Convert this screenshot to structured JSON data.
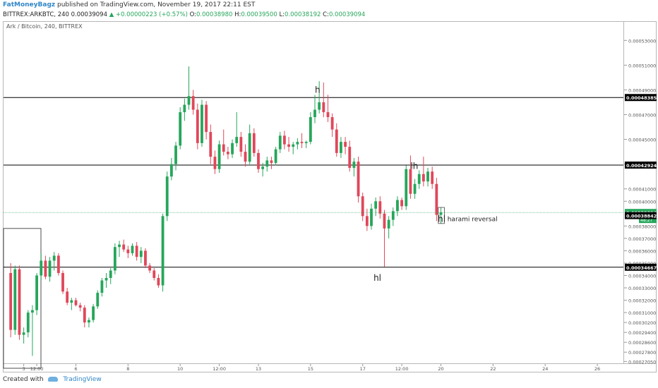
{
  "header": {
    "author": "FatMoneyBagz",
    "published_text": "published on TradingView.com, November 19, 2017 22:11 EST",
    "symbol_line": "BITTREX:ARKBTC, 240",
    "last_price": "0.00039094",
    "change_text": "▲ +0.00000223 (+0.57%)",
    "o_label": "O:",
    "o_value": "0.00038980",
    "h_label": "H:",
    "h_value": "0.00039500",
    "l_label": "L:",
    "l_value": "0.00038192",
    "c_label": "C:",
    "c_value": "0.00039094"
  },
  "symbol_title": "Ark / Bitcoin, 240, BITTREX",
  "footer": {
    "created_with": "Created with",
    "brand": "TradingView"
  },
  "chart_data": {
    "type": "candlestick",
    "title": "Ark / Bitcoin, 240, BITTREX",
    "ylim": [
      0.000269,
      0.000545
    ],
    "y_tick_labels": [
      "0.00053000",
      "0.00051000",
      "0.00049000",
      "0.00047000",
      "0.00045000",
      "0.00043000",
      "0.00041000",
      "0.00040000",
      "0.00038000",
      "0.00037000",
      "0.00036000",
      "0.00035000",
      "0.00034000",
      "0.00033000",
      "0.00032000",
      "0.00031000",
      "0.00030200",
      "0.00029400",
      "0.00028600",
      "0.00027800",
      "0.00027050"
    ],
    "y_tick_values": [
      0.00053,
      0.00051,
      0.00049,
      0.00047,
      0.00045,
      0.00043,
      0.00041,
      0.0004,
      0.00038,
      0.00037,
      0.00036,
      0.00035,
      0.00034,
      0.00033,
      0.00032,
      0.00031,
      0.000302,
      0.000294,
      0.000286,
      0.000278,
      0.0002705
    ],
    "x_ticks": [
      {
        "label": "3",
        "pos": 4
      },
      {
        "label": "12:00",
        "pos": 7
      },
      {
        "label": "6",
        "pos": 16
      },
      {
        "label": "8",
        "pos": 28
      },
      {
        "label": "10",
        "pos": 40
      },
      {
        "label": "12:00",
        "pos": 49
      },
      {
        "label": "13",
        "pos": 58
      },
      {
        "label": "15",
        "pos": 70
      },
      {
        "label": "17",
        "pos": 82
      },
      {
        "label": "12:00",
        "pos": 91
      },
      {
        "label": "20",
        "pos": 100
      },
      {
        "label": "22",
        "pos": 112
      },
      {
        "label": "24",
        "pos": 124
      },
      {
        "label": "26",
        "pos": 136
      }
    ],
    "x_range": [
      0,
      142
    ],
    "horizontal_levels": [
      {
        "value": 0.00048385,
        "label": "0.00048385"
      },
      {
        "value": 0.00042924,
        "label": "0.00042924"
      },
      {
        "value": 0.00034667,
        "label": "0.00034667"
      }
    ],
    "price_markers": [
      {
        "value": 0.00039094,
        "label": "0.00039094",
        "color": "#26a65b"
      },
      {
        "value": 0.00038842,
        "label": "0.00038842",
        "color": "#000000"
      }
    ],
    "countdown": "48:27",
    "annotations": [
      {
        "text": "h",
        "x": 71,
        "y": 0.0004878
      },
      {
        "text": "lh",
        "x": 93,
        "y": 0.000426
      },
      {
        "text": "hl",
        "x": 84.5,
        "y": 0.0003358
      },
      {
        "text": "hl",
        "x": 99.3,
        "y": 0.0003833
      },
      {
        "text": "harami reversal",
        "x": 101.5,
        "y": 0.000384
      }
    ],
    "colors": {
      "up": "#26a65b",
      "down": "#e0475a",
      "level": "#000000"
    },
    "candles": [
      {
        "o": 0.000342,
        "h": 0.00035,
        "l": 0.00029,
        "c": 0.000296
      },
      {
        "o": 0.000296,
        "h": 0.000348,
        "l": 0.000292,
        "c": 0.000345
      },
      {
        "o": 0.000345,
        "h": 0.000348,
        "l": 0.000288,
        "c": 0.000292
      },
      {
        "o": 0.000292,
        "h": 0.000298,
        "l": 0.000285,
        "c": 0.000294
      },
      {
        "o": 0.000294,
        "h": 0.000312,
        "l": 0.00029,
        "c": 0.00031
      },
      {
        "o": 0.00031,
        "h": 0.000316,
        "l": 0.000275,
        "c": 0.000312
      },
      {
        "o": 0.000312,
        "h": 0.000342,
        "l": 0.000308,
        "c": 0.00034
      },
      {
        "o": 0.00034,
        "h": 0.000358,
        "l": 0.000336,
        "c": 0.000352
      },
      {
        "o": 0.000352,
        "h": 0.000356,
        "l": 0.000337,
        "c": 0.000339
      },
      {
        "o": 0.000339,
        "h": 0.000355,
        "l": 0.000335,
        "c": 0.000352
      },
      {
        "o": 0.000352,
        "h": 0.000359,
        "l": 0.000344,
        "c": 0.000356
      },
      {
        "o": 0.000356,
        "h": 0.000358,
        "l": 0.00034,
        "c": 0.000342
      },
      {
        "o": 0.000342,
        "h": 0.000344,
        "l": 0.000325,
        "c": 0.000327
      },
      {
        "o": 0.000327,
        "h": 0.00033,
        "l": 0.000316,
        "c": 0.000318
      },
      {
        "o": 0.000318,
        "h": 0.000322,
        "l": 0.000312,
        "c": 0.00032
      },
      {
        "o": 0.00032,
        "h": 0.000322,
        "l": 0.000315,
        "c": 0.000316
      },
      {
        "o": 0.000316,
        "h": 0.000318,
        "l": 0.000311,
        "c": 0.000314
      },
      {
        "o": 0.000314,
        "h": 0.000316,
        "l": 0.000298,
        "c": 0.000302
      },
      {
        "o": 0.000302,
        "h": 0.000306,
        "l": 0.000298,
        "c": 0.000304
      },
      {
        "o": 0.000304,
        "h": 0.000317,
        "l": 0.000302,
        "c": 0.000315
      },
      {
        "o": 0.000315,
        "h": 0.000328,
        "l": 0.000313,
        "c": 0.000326
      },
      {
        "o": 0.000326,
        "h": 0.000338,
        "l": 0.000323,
        "c": 0.000336
      },
      {
        "o": 0.000336,
        "h": 0.000342,
        "l": 0.00033,
        "c": 0.000338
      },
      {
        "o": 0.000338,
        "h": 0.000346,
        "l": 0.000333,
        "c": 0.000344
      },
      {
        "o": 0.000344,
        "h": 0.000366,
        "l": 0.000341,
        "c": 0.000363
      },
      {
        "o": 0.000363,
        "h": 0.000368,
        "l": 0.000355,
        "c": 0.000365
      },
      {
        "o": 0.000365,
        "h": 0.000369,
        "l": 0.000359,
        "c": 0.000361
      },
      {
        "o": 0.000361,
        "h": 0.000364,
        "l": 0.000354,
        "c": 0.000358
      },
      {
        "o": 0.000358,
        "h": 0.000366,
        "l": 0.000356,
        "c": 0.000364
      },
      {
        "o": 0.000364,
        "h": 0.000367,
        "l": 0.000352,
        "c": 0.000355
      },
      {
        "o": 0.000355,
        "h": 0.000363,
        "l": 0.00035,
        "c": 0.00036
      },
      {
        "o": 0.00036,
        "h": 0.000362,
        "l": 0.000346,
        "c": 0.000348
      },
      {
        "o": 0.000348,
        "h": 0.00035,
        "l": 0.000342,
        "c": 0.000344
      },
      {
        "o": 0.000344,
        "h": 0.000346,
        "l": 0.000336,
        "c": 0.000338
      },
      {
        "o": 0.000338,
        "h": 0.000341,
        "l": 0.00033,
        "c": 0.000332
      },
      {
        "o": 0.000332,
        "h": 0.00039,
        "l": 0.000327,
        "c": 0.000388
      },
      {
        "o": 0.000388,
        "h": 0.000424,
        "l": 0.000384,
        "c": 0.00042
      },
      {
        "o": 0.00042,
        "h": 0.000435,
        "l": 0.000417,
        "c": 0.00043
      },
      {
        "o": 0.00043,
        "h": 0.000448,
        "l": 0.000425,
        "c": 0.000445
      },
      {
        "o": 0.000445,
        "h": 0.000476,
        "l": 0.000442,
        "c": 0.000472
      },
      {
        "o": 0.000472,
        "h": 0.000483,
        "l": 0.000465,
        "c": 0.000478
      },
      {
        "o": 0.000478,
        "h": 0.000509,
        "l": 0.000474,
        "c": 0.000485
      },
      {
        "o": 0.000485,
        "h": 0.00049,
        "l": 0.00047,
        "c": 0.000474
      },
      {
        "o": 0.000474,
        "h": 0.000479,
        "l": 0.000442,
        "c": 0.000447
      },
      {
        "o": 0.000447,
        "h": 0.000482,
        "l": 0.000444,
        "c": 0.000478
      },
      {
        "o": 0.000478,
        "h": 0.000481,
        "l": 0.00045,
        "c": 0.000456
      },
      {
        "o": 0.000456,
        "h": 0.000462,
        "l": 0.00043,
        "c": 0.000436
      },
      {
        "o": 0.000436,
        "h": 0.000441,
        "l": 0.000422,
        "c": 0.000426
      },
      {
        "o": 0.000426,
        "h": 0.000449,
        "l": 0.000423,
        "c": 0.000446
      },
      {
        "o": 0.000446,
        "h": 0.000458,
        "l": 0.000437,
        "c": 0.00044
      },
      {
        "o": 0.00044,
        "h": 0.000444,
        "l": 0.000434,
        "c": 0.000438
      },
      {
        "o": 0.000438,
        "h": 0.00045,
        "l": 0.000435,
        "c": 0.000447
      },
      {
        "o": 0.000447,
        "h": 0.000472,
        "l": 0.000444,
        "c": 0.000452
      },
      {
        "o": 0.000452,
        "h": 0.000456,
        "l": 0.000436,
        "c": 0.00044
      },
      {
        "o": 0.00044,
        "h": 0.000446,
        "l": 0.000428,
        "c": 0.000432
      },
      {
        "o": 0.000432,
        "h": 0.000462,
        "l": 0.00043,
        "c": 0.000455
      },
      {
        "o": 0.000455,
        "h": 0.000459,
        "l": 0.000436,
        "c": 0.000439
      },
      {
        "o": 0.000439,
        "h": 0.000442,
        "l": 0.000423,
        "c": 0.000426
      },
      {
        "o": 0.000426,
        "h": 0.000431,
        "l": 0.00042,
        "c": 0.000428
      },
      {
        "o": 0.000428,
        "h": 0.000436,
        "l": 0.000424,
        "c": 0.000433
      },
      {
        "o": 0.000433,
        "h": 0.000436,
        "l": 0.000426,
        "c": 0.000431
      },
      {
        "o": 0.000431,
        "h": 0.000444,
        "l": 0.000429,
        "c": 0.000442
      },
      {
        "o": 0.000442,
        "h": 0.000456,
        "l": 0.000439,
        "c": 0.000453
      },
      {
        "o": 0.000453,
        "h": 0.000457,
        "l": 0.000442,
        "c": 0.000446
      },
      {
        "o": 0.000446,
        "h": 0.000452,
        "l": 0.00044,
        "c": 0.000444
      },
      {
        "o": 0.000444,
        "h": 0.000448,
        "l": 0.000438,
        "c": 0.000446
      },
      {
        "o": 0.000446,
        "h": 0.000451,
        "l": 0.000442,
        "c": 0.000448
      },
      {
        "o": 0.000448,
        "h": 0.000455,
        "l": 0.000443,
        "c": 0.000447
      },
      {
        "o": 0.000447,
        "h": 0.000449,
        "l": 0.000443,
        "c": 0.000448
      },
      {
        "o": 0.000448,
        "h": 0.000472,
        "l": 0.000446,
        "c": 0.000468
      },
      {
        "o": 0.000468,
        "h": 0.000486,
        "l": 0.000463,
        "c": 0.000474
      },
      {
        "o": 0.000474,
        "h": 0.000497,
        "l": 0.000471,
        "c": 0.00048
      },
      {
        "o": 0.00048,
        "h": 0.000496,
        "l": 0.000468,
        "c": 0.000472
      },
      {
        "o": 0.000472,
        "h": 0.000486,
        "l": 0.000464,
        "c": 0.000468
      },
      {
        "o": 0.000468,
        "h": 0.000471,
        "l": 0.000452,
        "c": 0.000458
      },
      {
        "o": 0.000458,
        "h": 0.000463,
        "l": 0.000436,
        "c": 0.000439
      },
      {
        "o": 0.000439,
        "h": 0.000452,
        "l": 0.000435,
        "c": 0.000448
      },
      {
        "o": 0.000448,
        "h": 0.000452,
        "l": 0.000438,
        "c": 0.000444
      },
      {
        "o": 0.000444,
        "h": 0.000449,
        "l": 0.000424,
        "c": 0.000427
      },
      {
        "o": 0.000427,
        "h": 0.000435,
        "l": 0.00042,
        "c": 0.000432
      },
      {
        "o": 0.000432,
        "h": 0.000436,
        "l": 0.000399,
        "c": 0.000404
      },
      {
        "o": 0.000404,
        "h": 0.000407,
        "l": 0.000384,
        "c": 0.000388
      },
      {
        "o": 0.000388,
        "h": 0.000394,
        "l": 0.000376,
        "c": 0.00038
      },
      {
        "o": 0.00038,
        "h": 0.000398,
        "l": 0.000377,
        "c": 0.000394
      },
      {
        "o": 0.000394,
        "h": 0.000403,
        "l": 0.000388,
        "c": 0.0004
      },
      {
        "o": 0.0004,
        "h": 0.000404,
        "l": 0.000386,
        "c": 0.00039
      },
      {
        "o": 0.00039,
        "h": 0.000393,
        "l": 0.000347,
        "c": 0.000378
      },
      {
        "o": 0.000378,
        "h": 0.000388,
        "l": 0.00037,
        "c": 0.000385
      },
      {
        "o": 0.000385,
        "h": 0.000395,
        "l": 0.00038,
        "c": 0.000392
      },
      {
        "o": 0.000392,
        "h": 0.000404,
        "l": 0.000388,
        "c": 0.000401
      },
      {
        "o": 0.000401,
        "h": 0.000403,
        "l": 0.000393,
        "c": 0.000396
      },
      {
        "o": 0.000396,
        "h": 0.000429,
        "l": 0.000393,
        "c": 0.000426
      },
      {
        "o": 0.000426,
        "h": 0.000437,
        "l": 0.000402,
        "c": 0.000406
      },
      {
        "o": 0.000406,
        "h": 0.000418,
        "l": 0.000402,
        "c": 0.000414
      },
      {
        "o": 0.000414,
        "h": 0.000425,
        "l": 0.00041,
        "c": 0.000422
      },
      {
        "o": 0.000422,
        "h": 0.000436,
        "l": 0.000412,
        "c": 0.000416
      },
      {
        "o": 0.000416,
        "h": 0.000427,
        "l": 0.000412,
        "c": 0.000424
      },
      {
        "o": 0.000424,
        "h": 0.000428,
        "l": 0.00041,
        "c": 0.000414
      },
      {
        "o": 0.000414,
        "h": 0.000419,
        "l": 0.000384,
        "c": 0.000389
      },
      {
        "o": 0.000389,
        "h": 0.000395,
        "l": 0.000382,
        "c": 0.000391
      }
    ]
  }
}
